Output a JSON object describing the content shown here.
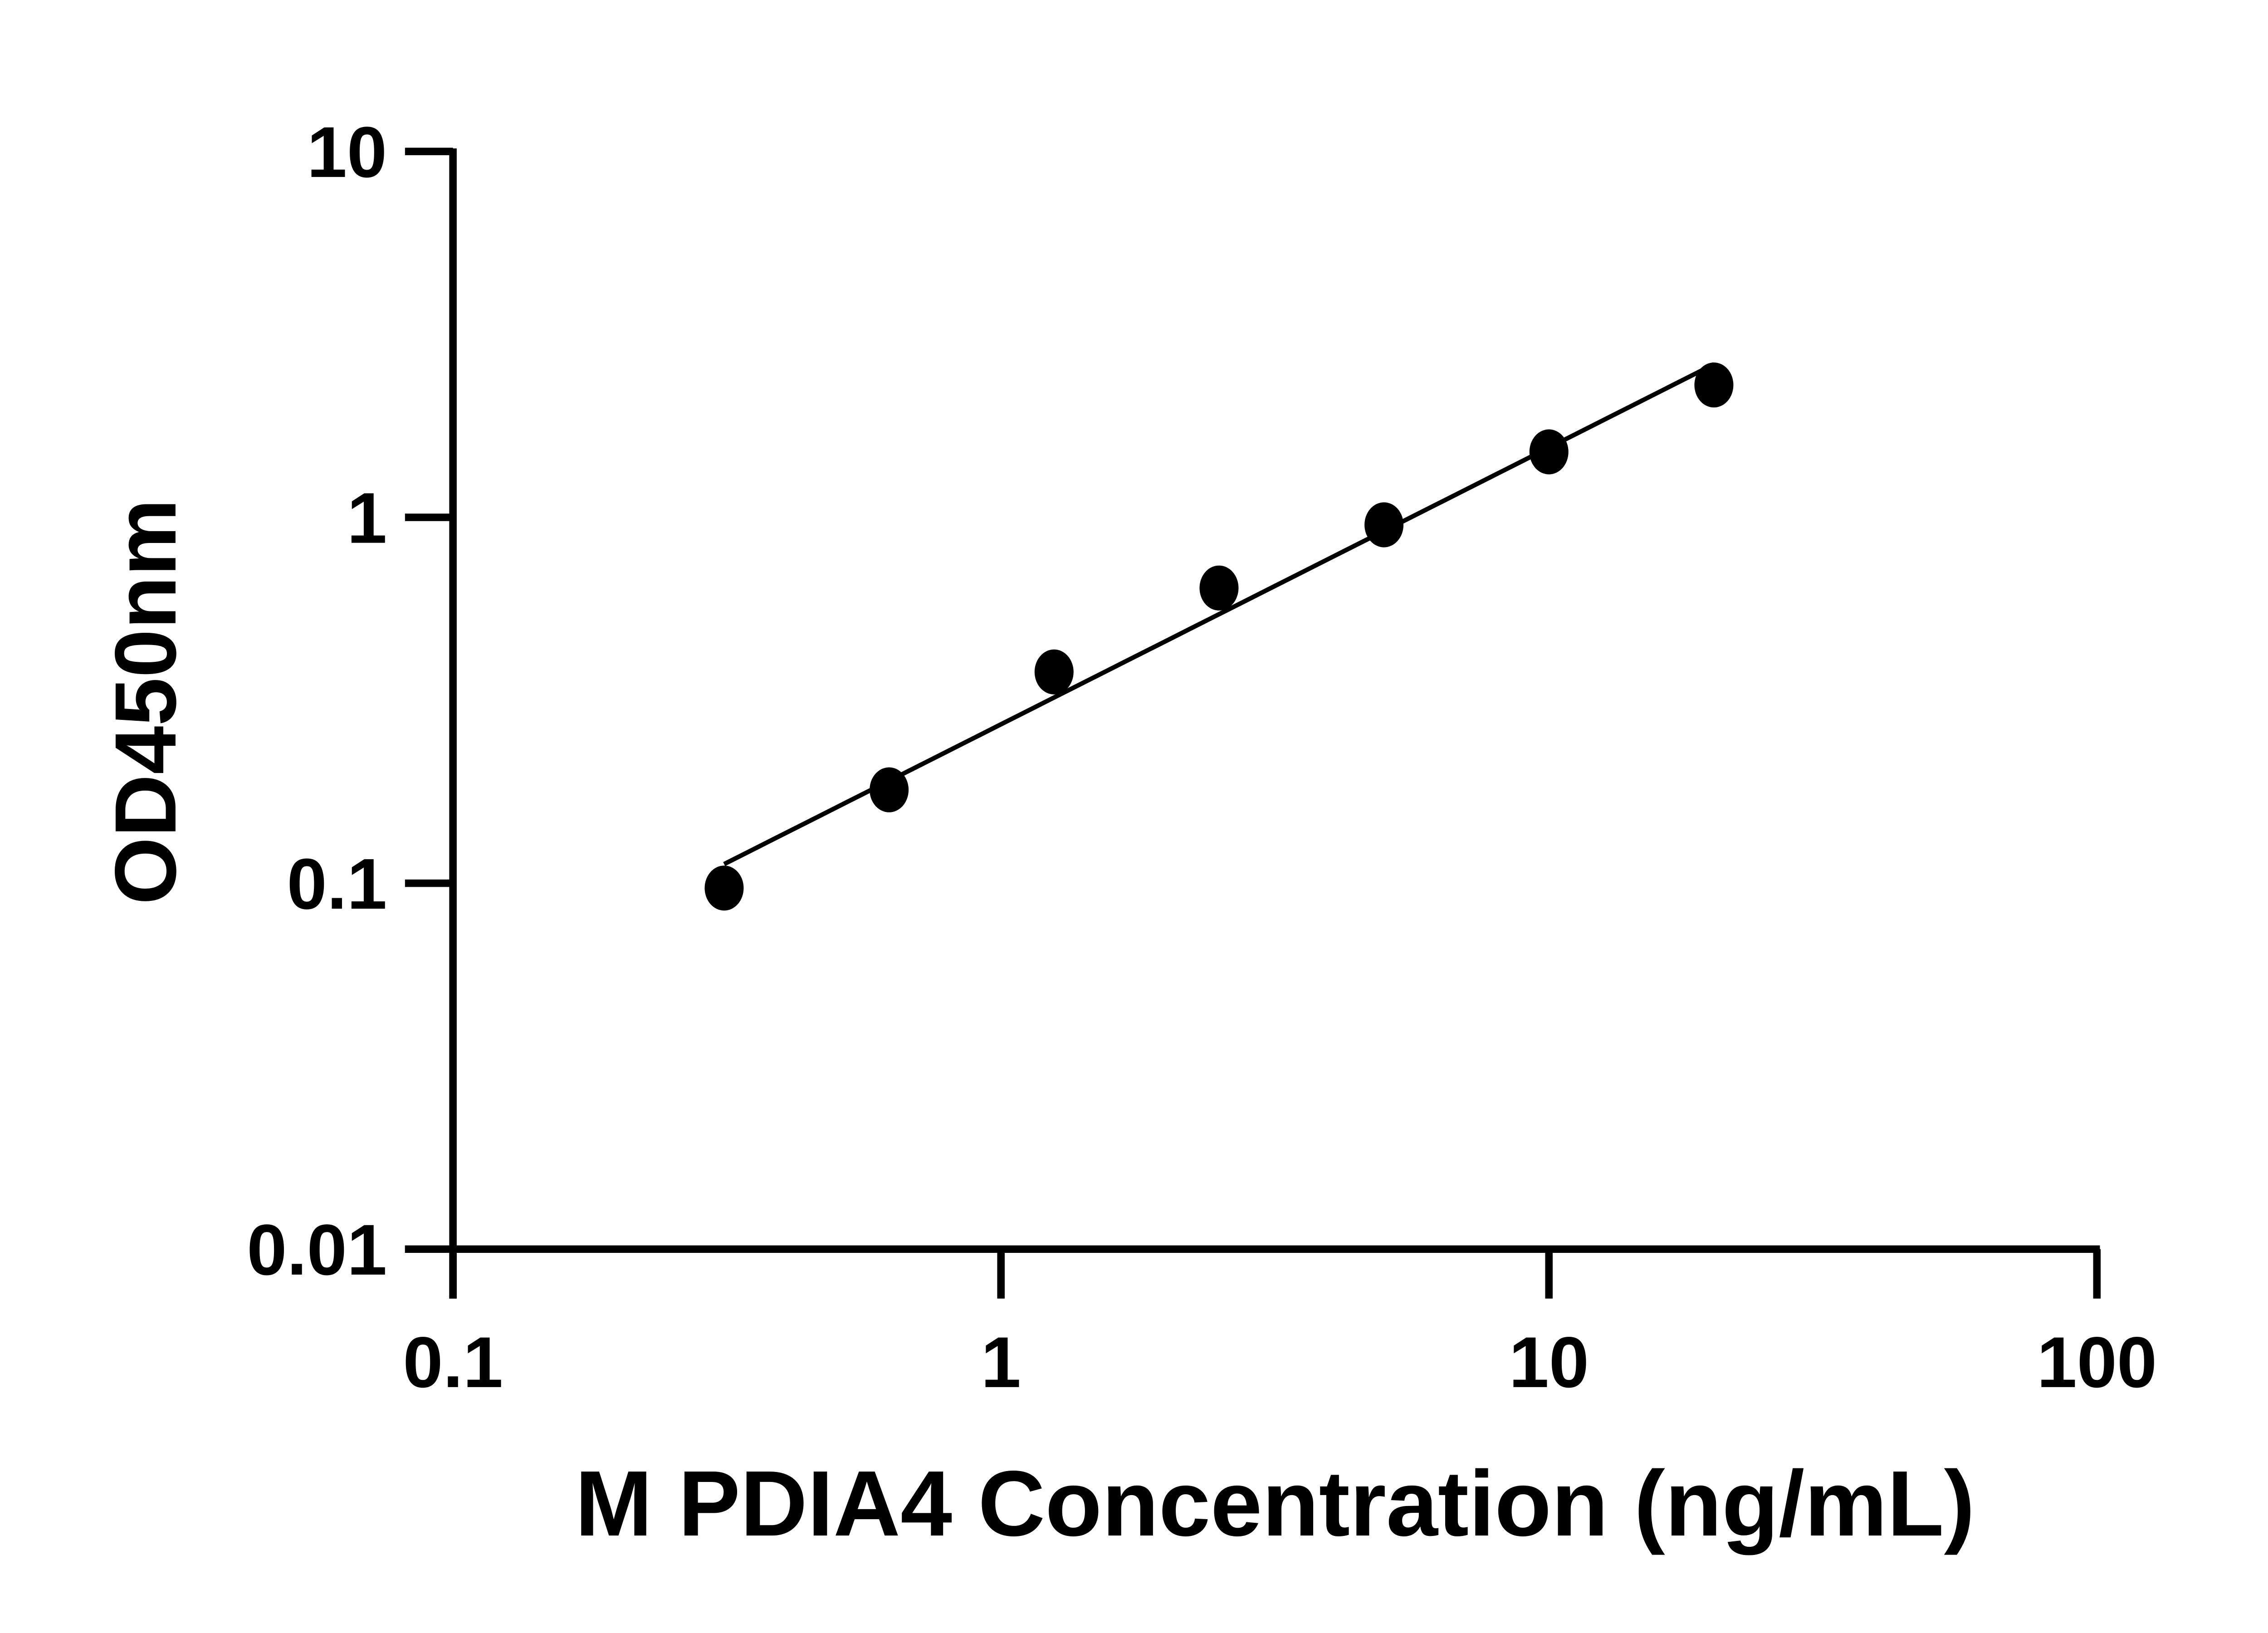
{
  "chart_data": {
    "type": "scatter",
    "title": "",
    "xlabel": "M PDIA4 Concentration (ng/mL)",
    "ylabel": "OD450nm",
    "x_scale": "log",
    "y_scale": "log",
    "xlim": [
      0.1,
      100
    ],
    "ylim": [
      0.01,
      10
    ],
    "x_ticks": [
      "0.1",
      "1",
      "10",
      "100"
    ],
    "y_ticks": [
      "0.01",
      "0.1",
      "1",
      "10"
    ],
    "grid": false,
    "legend": "none",
    "fit_line": true,
    "marker_color": "#000000",
    "series": [
      {
        "x": [
          0.3125,
          0.625,
          1.25,
          2.5,
          5,
          10,
          20
        ],
        "y": [
          0.097,
          0.18,
          0.378,
          0.641,
          0.954,
          1.51,
          2.3
        ]
      }
    ]
  }
}
